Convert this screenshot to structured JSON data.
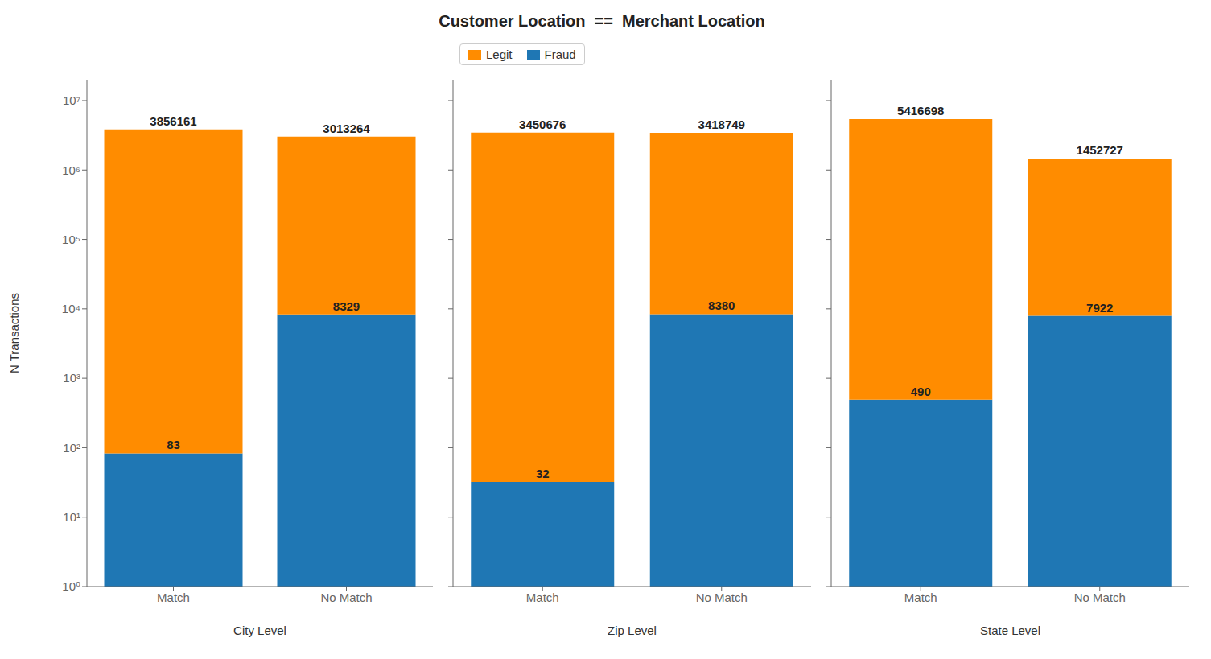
{
  "title": "Customer Location  ==  Merchant Location",
  "chart_data": [
    {
      "type": "bar",
      "stacked": true,
      "log": "y",
      "xlabel": "City Level",
      "ylabel": "N Transactions",
      "categories": [
        "Match",
        "No Match"
      ],
      "series": [
        {
          "name": "Legit",
          "color": "#FF8C00",
          "values": [
            3856161,
            3013264
          ]
        },
        {
          "name": "Fraud",
          "color": "#1F77B4",
          "values": [
            83,
            8329
          ]
        }
      ],
      "ylim": [
        1,
        20000000
      ],
      "yticks": [
        {
          "value": 1,
          "label": "10⁰"
        },
        {
          "value": 10,
          "label": "10¹"
        },
        {
          "value": 100,
          "label": "10²"
        },
        {
          "value": 1000,
          "label": "10³"
        },
        {
          "value": 10000,
          "label": "10⁴"
        },
        {
          "value": 100000,
          "label": "10⁵"
        },
        {
          "value": 1000000,
          "label": "10⁶"
        },
        {
          "value": 10000000,
          "label": "10⁷"
        }
      ],
      "data_labels": true,
      "grid": false
    },
    {
      "type": "bar",
      "stacked": true,
      "log": "y",
      "xlabel": "Zip Level",
      "categories": [
        "Match",
        "No Match"
      ],
      "series": [
        {
          "name": "Legit",
          "color": "#FF8C00",
          "values": [
            3450676,
            3418749
          ]
        },
        {
          "name": "Fraud",
          "color": "#1F77B4",
          "values": [
            32,
            8380
          ]
        }
      ],
      "ylim": [
        1,
        20000000
      ],
      "yticks": [
        {
          "value": 1,
          "label": "10⁰"
        },
        {
          "value": 10,
          "label": "10¹"
        },
        {
          "value": 100,
          "label": "10²"
        },
        {
          "value": 1000,
          "label": "10³"
        },
        {
          "value": 10000,
          "label": "10⁴"
        },
        {
          "value": 100000,
          "label": "10⁵"
        },
        {
          "value": 1000000,
          "label": "10⁶"
        },
        {
          "value": 10000000,
          "label": "10⁷"
        }
      ],
      "tick_labels": "x",
      "data_labels": true,
      "grid": false,
      "legend": "upper left"
    },
    {
      "type": "bar",
      "stacked": true,
      "log": "y",
      "xlabel": "State Level",
      "categories": [
        "Match",
        "No Match"
      ],
      "series": [
        {
          "name": "Legit",
          "color": "#FF8C00",
          "values": [
            5416698,
            1452727
          ]
        },
        {
          "name": "Fraud",
          "color": "#1F77B4",
          "values": [
            490,
            7922
          ]
        }
      ],
      "ylim": [
        1,
        20000000
      ],
      "yticks": [
        {
          "value": 1,
          "label": "10⁰"
        },
        {
          "value": 10,
          "label": "10¹"
        },
        {
          "value": 100,
          "label": "10²"
        },
        {
          "value": 1000,
          "label": "10³"
        },
        {
          "value": 10000,
          "label": "10⁴"
        },
        {
          "value": 100000,
          "label": "10⁵"
        },
        {
          "value": 1000000,
          "label": "10⁶"
        },
        {
          "value": 10000000,
          "label": "10⁷"
        }
      ],
      "tick_labels": "x",
      "data_labels": true,
      "grid": false
    }
  ]
}
